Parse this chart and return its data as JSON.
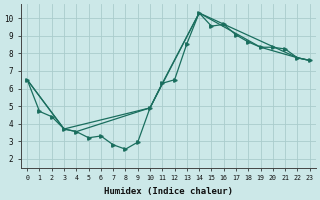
{
  "xlabel": "Humidex (Indice chaleur)",
  "background_color": "#cce8e8",
  "grid_color": "#aacccc",
  "line_color": "#1a6e5e",
  "xlim": [
    -0.5,
    23.5
  ],
  "ylim": [
    1.5,
    10.8
  ],
  "xticks": [
    0,
    1,
    2,
    3,
    4,
    5,
    6,
    7,
    8,
    9,
    10,
    11,
    12,
    13,
    14,
    15,
    16,
    17,
    18,
    19,
    20,
    21,
    22,
    23
  ],
  "yticks": [
    2,
    3,
    4,
    5,
    6,
    7,
    8,
    9,
    10
  ],
  "line1": {
    "x": [
      0,
      1,
      2,
      3,
      4,
      5,
      6,
      7,
      8,
      9,
      10,
      11,
      12,
      13,
      14,
      15,
      16,
      17,
      18,
      19,
      20,
      21,
      22,
      23
    ],
    "y": [
      6.5,
      4.7,
      4.4,
      3.7,
      3.55,
      3.2,
      3.3,
      2.8,
      2.55,
      2.95,
      4.9,
      6.3,
      6.5,
      8.55,
      10.3,
      9.55,
      9.65,
      9.05,
      8.65,
      8.35,
      8.35,
      8.25,
      7.75,
      7.6
    ]
  },
  "line2": {
    "x": [
      0,
      3,
      4,
      10,
      11,
      14,
      22,
      23
    ],
    "y": [
      6.5,
      3.7,
      3.55,
      4.9,
      6.3,
      10.3,
      7.75,
      7.6
    ]
  },
  "line3": {
    "x": [
      0,
      3,
      10,
      14,
      19,
      22,
      23
    ],
    "y": [
      6.5,
      3.7,
      4.9,
      10.3,
      8.35,
      7.75,
      7.6
    ]
  }
}
